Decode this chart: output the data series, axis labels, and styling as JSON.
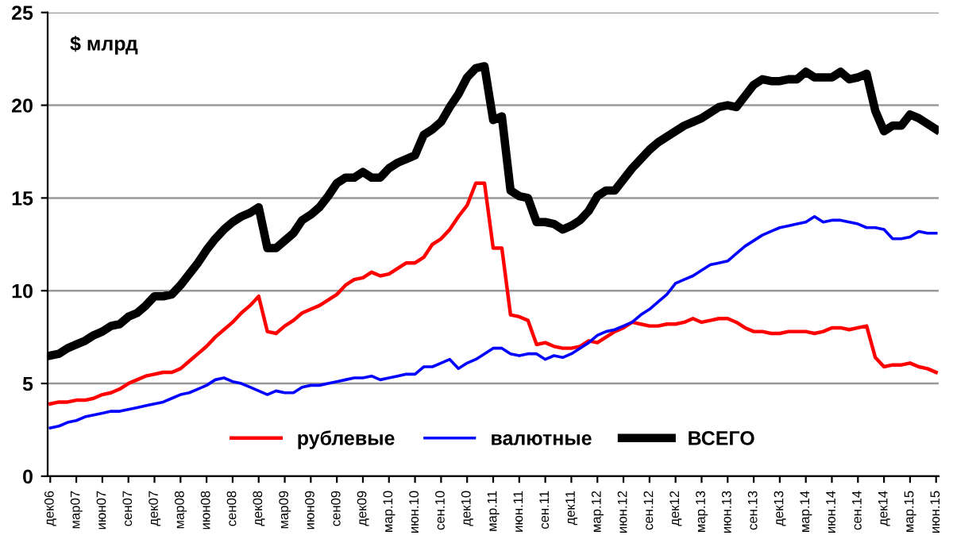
{
  "chart_data": {
    "type": "line",
    "ylabel": "$ млрд",
    "categories": [
      "дек06",
      null,
      null,
      "мар07",
      null,
      null,
      "июн07",
      null,
      null,
      "сен07",
      null,
      null,
      "дек07",
      null,
      null,
      "мар08",
      null,
      null,
      "июн08",
      null,
      null,
      "сен08",
      null,
      null,
      "дек08",
      null,
      null,
      "мар09",
      null,
      null,
      "июн09",
      null,
      null,
      "сен09",
      null,
      null,
      "дек09",
      null,
      null,
      "мар.10",
      null,
      null,
      "июн.10",
      null,
      null,
      "сен.10",
      null,
      null,
      "дек10",
      null,
      null,
      "мар.11",
      null,
      null,
      "июн.11",
      null,
      null,
      "сен.11",
      null,
      null,
      "дек11",
      null,
      null,
      "мар.12",
      null,
      null,
      "июн.12",
      null,
      null,
      "сен.12",
      null,
      null,
      "дек12",
      null,
      null,
      "мар.13",
      null,
      null,
      "июн.13",
      null,
      null,
      "сен.13",
      null,
      null,
      "дек13",
      null,
      null,
      "мар.14",
      null,
      null,
      "июн.14",
      null,
      null,
      "сен.14",
      null,
      null,
      "дек14",
      null,
      null,
      "мар.15",
      null,
      null,
      "июн.15"
    ],
    "series": [
      {
        "name": "рублевые",
        "color": "#ff0000",
        "values": [
          3.9,
          4.0,
          4.0,
          4.1,
          4.1,
          4.2,
          4.4,
          4.5,
          4.7,
          5.0,
          5.2,
          5.4,
          5.5,
          5.6,
          5.6,
          5.8,
          6.2,
          6.6,
          7.0,
          7.5,
          7.9,
          8.3,
          8.8,
          9.2,
          9.7,
          7.8,
          7.7,
          8.1,
          8.4,
          8.8,
          9.0,
          9.2,
          9.5,
          9.8,
          10.3,
          10.6,
          10.7,
          11.0,
          10.8,
          10.9,
          11.2,
          11.5,
          11.5,
          11.8,
          12.5,
          12.8,
          13.3,
          14.0,
          14.6,
          15.8,
          15.8,
          12.3,
          12.3,
          8.7,
          8.6,
          8.4,
          7.1,
          7.2,
          7.0,
          6.9,
          6.9,
          7.0,
          7.3,
          7.2,
          7.5,
          7.8,
          8.0,
          8.3,
          8.2,
          8.1,
          8.1,
          8.2,
          8.2,
          8.3,
          8.5,
          8.3,
          8.4,
          8.5,
          8.5,
          8.3,
          8.0,
          7.8,
          7.8,
          7.7,
          7.7,
          7.8,
          7.8,
          7.8,
          7.7,
          7.8,
          8.0,
          8.0,
          7.9,
          8.0,
          8.1,
          6.4,
          5.9,
          6.0,
          6.0,
          6.1,
          5.9,
          5.8,
          5.6
        ]
      },
      {
        "name": "валютные",
        "color": "#0000ff",
        "values": [
          2.6,
          2.7,
          2.9,
          3.0,
          3.2,
          3.3,
          3.4,
          3.5,
          3.5,
          3.6,
          3.7,
          3.8,
          3.9,
          4.0,
          4.2,
          4.4,
          4.5,
          4.7,
          4.9,
          5.2,
          5.3,
          5.1,
          5.0,
          4.8,
          4.6,
          4.4,
          4.6,
          4.5,
          4.5,
          4.8,
          4.9,
          4.9,
          5.0,
          5.1,
          5.2,
          5.3,
          5.3,
          5.4,
          5.2,
          5.3,
          5.4,
          5.5,
          5.5,
          5.9,
          5.9,
          6.1,
          6.3,
          5.8,
          6.1,
          6.3,
          6.6,
          6.9,
          6.9,
          6.6,
          6.5,
          6.6,
          6.6,
          6.3,
          6.5,
          6.4,
          6.6,
          6.9,
          7.2,
          7.6,
          7.8,
          7.9,
          8.1,
          8.3,
          8.7,
          9.0,
          9.4,
          9.8,
          10.4,
          10.6,
          10.8,
          11.1,
          11.4,
          11.5,
          11.6,
          12.0,
          12.4,
          12.7,
          13.0,
          13.2,
          13.4,
          13.5,
          13.6,
          13.7,
          14.0,
          13.7,
          13.8,
          13.8,
          13.7,
          13.6,
          13.4,
          13.4,
          13.3,
          12.8,
          12.8,
          12.9,
          13.2,
          13.1,
          13.1
        ]
      },
      {
        "name": "ВСЕГО",
        "color": "#000000",
        "values": [
          6.5,
          6.6,
          6.9,
          7.1,
          7.3,
          7.6,
          7.8,
          8.1,
          8.2,
          8.6,
          8.8,
          9.2,
          9.7,
          9.7,
          9.8,
          10.3,
          10.9,
          11.5,
          12.2,
          12.8,
          13.3,
          13.7,
          14.0,
          14.2,
          14.5,
          12.3,
          12.3,
          12.7,
          13.1,
          13.8,
          14.1,
          14.5,
          15.1,
          15.8,
          16.1,
          16.1,
          16.4,
          16.1,
          16.1,
          16.6,
          16.9,
          17.1,
          17.3,
          18.4,
          18.7,
          19.1,
          19.9,
          20.6,
          21.5,
          22.0,
          22.1,
          19.2,
          19.4,
          15.4,
          15.1,
          15.0,
          13.7,
          13.7,
          13.6,
          13.3,
          13.5,
          13.8,
          14.3,
          15.1,
          15.4,
          15.4,
          16.0,
          16.6,
          17.1,
          17.6,
          18.0,
          18.3,
          18.6,
          18.9,
          19.1,
          19.3,
          19.6,
          19.9,
          20.0,
          19.9,
          20.5,
          21.1,
          21.4,
          21.3,
          21.3,
          21.4,
          21.4,
          21.8,
          21.5,
          21.5,
          21.5,
          21.8,
          21.4,
          21.5,
          21.7,
          19.7,
          18.6,
          18.9,
          18.9,
          19.5,
          19.3,
          19.0,
          18.7
        ]
      }
    ],
    "ylim": [
      0,
      25
    ],
    "yticks": [
      0,
      5,
      10,
      15,
      20,
      25
    ],
    "grid": "y",
    "legend": "bottom",
    "marker": "none",
    "line_style": "solid"
  }
}
